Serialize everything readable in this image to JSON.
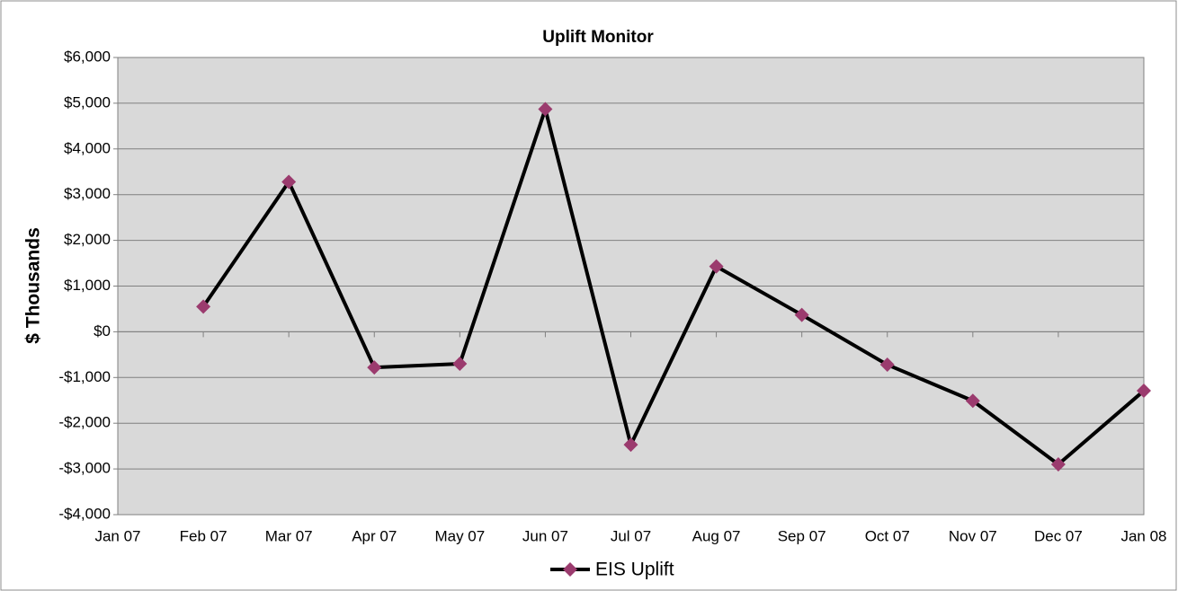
{
  "chart_data": {
    "type": "line",
    "title": "Uplift Monitor",
    "y_label": "$ Thousands",
    "categories": [
      "Jan 07",
      "Feb 07",
      "Mar 07",
      "Apr 07",
      "May 07",
      "Jun 07",
      "Jul 07",
      "Aug 07",
      "Sep 07",
      "Oct 07",
      "Nov 07",
      "Dec 07",
      "Jan 08"
    ],
    "series": [
      {
        "name": "EIS Uplift",
        "color": "#000000",
        "marker_color": "#9b3b6e",
        "values": [
          null,
          550,
          3280,
          -780,
          -700,
          4870,
          -2470,
          1430,
          370,
          -720,
          -1510,
          -2900,
          -1290
        ]
      }
    ],
    "ylim": [
      -4000,
      6000
    ],
    "yticks": [
      {
        "value": -4000,
        "label": "-$4,000"
      },
      {
        "value": -3000,
        "label": "-$3,000"
      },
      {
        "value": -2000,
        "label": "-$2,000"
      },
      {
        "value": -1000,
        "label": "-$1,000"
      },
      {
        "value": 0,
        "label": "$0"
      },
      {
        "value": 1000,
        "label": "$1,000"
      },
      {
        "value": 2000,
        "label": "$2,000"
      },
      {
        "value": 3000,
        "label": "$3,000"
      },
      {
        "value": 4000,
        "label": "$4,000"
      },
      {
        "value": 5000,
        "label": "$5,000"
      },
      {
        "value": 6000,
        "label": "$6,000"
      }
    ],
    "grid": true,
    "legend": "bottom",
    "plot_background": "#d9d9d9"
  }
}
